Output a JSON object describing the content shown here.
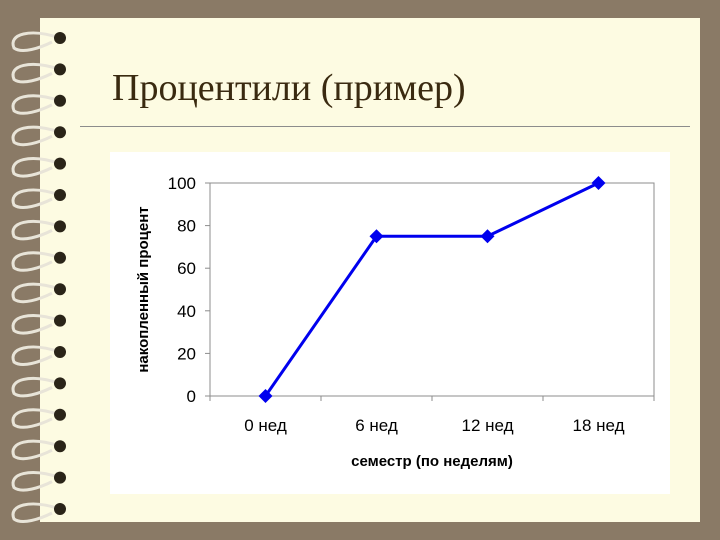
{
  "title": "Процентили (пример)",
  "colors": {
    "background": "#8a7a66",
    "page": "#fdfbe2",
    "series": "#0000ee",
    "title": "#3a2a10"
  },
  "chart_data": {
    "type": "line",
    "categories": [
      "0 нед",
      "6 нед",
      "12 нед",
      "18 нед"
    ],
    "series": [
      {
        "values": [
          0,
          75,
          75,
          100
        ]
      }
    ],
    "xlabel": "семестр (по неделям)",
    "ylabel": "накопленный процент",
    "ylim": [
      0,
      100
    ],
    "yticks": [
      0,
      20,
      40,
      60,
      80,
      100
    ],
    "grid": false,
    "marker": "diamond",
    "legend": "none"
  }
}
